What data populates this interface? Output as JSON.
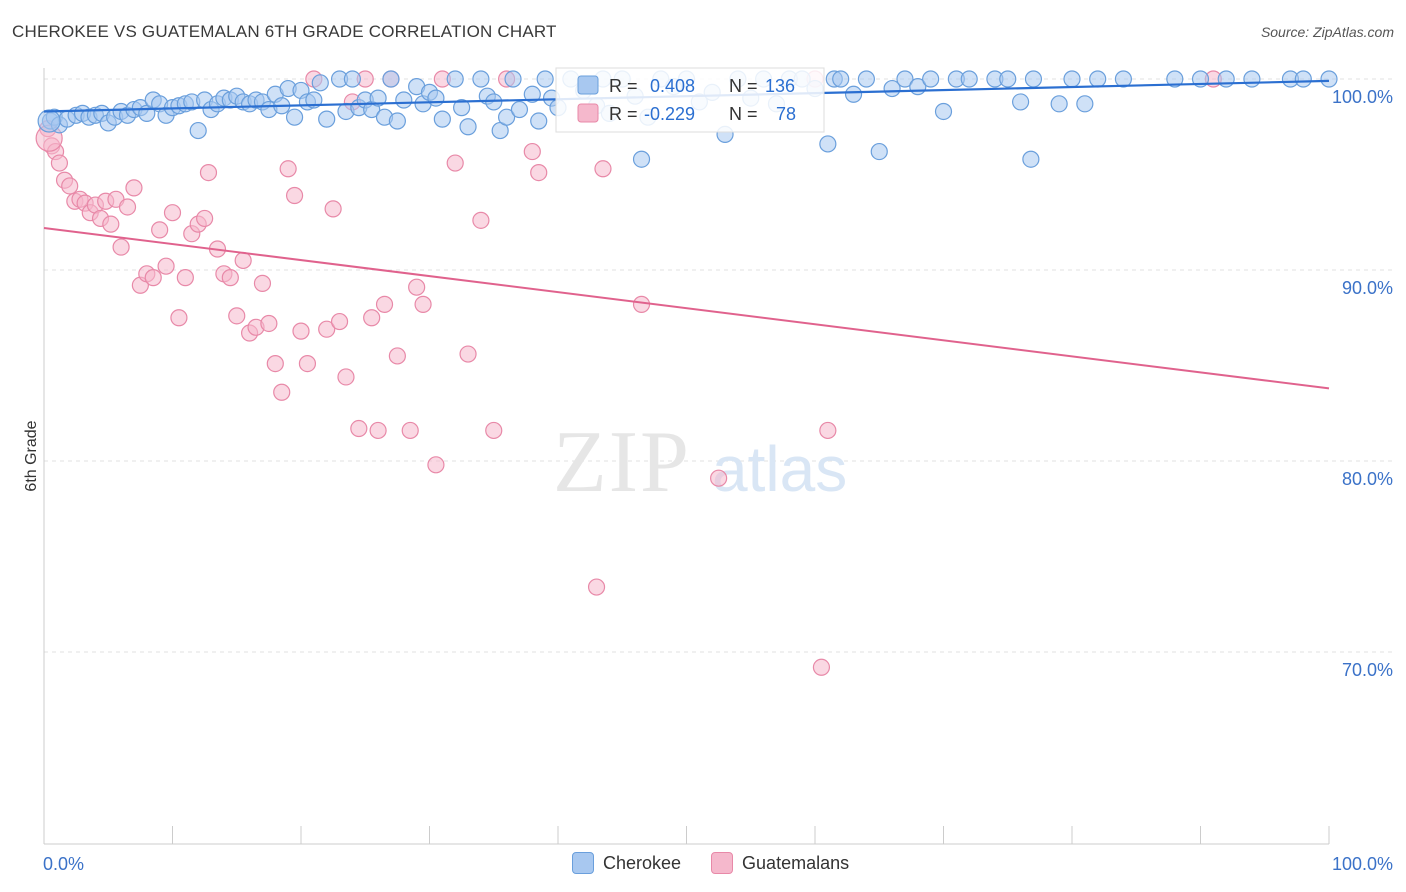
{
  "title": "CHEROKEE VS GUATEMALAN 6TH GRADE CORRELATION CHART",
  "source": "Source: ZipAtlas.com",
  "watermark": {
    "zip": "ZIP",
    "atlas": "atlas"
  },
  "colors": {
    "blue_fill": "#a8c8f0",
    "blue_stroke": "#6a9fdc",
    "blue_line": "#2b6fd1",
    "pink_fill": "#f5b8cc",
    "pink_stroke": "#e889a8",
    "pink_line": "#e0628d",
    "tick_label": "#3b72c8",
    "grid": "#e0e0e0"
  },
  "chart_data": {
    "type": "scatter",
    "xlabel": "",
    "ylabel": "6th Grade",
    "xlim": [
      0,
      100
    ],
    "ylim": [
      60,
      100
    ],
    "x_tick_labels": [
      "0.0%",
      "100.0%"
    ],
    "y_ticks": [
      100,
      90,
      80,
      70
    ],
    "y_tick_labels": [
      "100.0%",
      "90.0%",
      "80.0%",
      "70.0%"
    ],
    "grid": true,
    "legend_box": [
      {
        "r_label": "R =",
        "r_value": "0.408",
        "n_label": "N =",
        "n_value": "136"
      },
      {
        "r_label": "R =",
        "r_value": "-0.229",
        "n_label": "N =",
        "n_value": "78"
      }
    ],
    "series": [
      {
        "name": "Cherokee",
        "trend": [
          [
            0,
            98.3
          ],
          [
            100,
            99.9
          ]
        ],
        "points": [
          [
            0.5,
            97.8
          ],
          [
            0.8,
            98.0
          ],
          [
            1.2,
            97.6
          ],
          [
            1.8,
            97.9
          ],
          [
            2.5,
            98.1
          ],
          [
            3.0,
            98.2
          ],
          [
            3.5,
            98.0
          ],
          [
            4.0,
            98.1
          ],
          [
            4.5,
            98.2
          ],
          [
            5.0,
            97.7
          ],
          [
            5.5,
            98.0
          ],
          [
            6.0,
            98.3
          ],
          [
            6.5,
            98.1
          ],
          [
            7.0,
            98.4
          ],
          [
            7.5,
            98.5
          ],
          [
            8.0,
            98.2
          ],
          [
            8.5,
            98.9
          ],
          [
            9.0,
            98.7
          ],
          [
            9.5,
            98.1
          ],
          [
            10.0,
            98.5
          ],
          [
            10.5,
            98.6
          ],
          [
            11.0,
            98.7
          ],
          [
            11.5,
            98.8
          ],
          [
            12.0,
            97.3
          ],
          [
            12.5,
            98.9
          ],
          [
            13.0,
            98.4
          ],
          [
            13.5,
            98.7
          ],
          [
            14.0,
            99.0
          ],
          [
            14.5,
            98.9
          ],
          [
            15.0,
            99.1
          ],
          [
            15.5,
            98.8
          ],
          [
            16.0,
            98.7
          ],
          [
            16.5,
            98.9
          ],
          [
            17.0,
            98.8
          ],
          [
            17.5,
            98.4
          ],
          [
            18.0,
            99.2
          ],
          [
            18.5,
            98.6
          ],
          [
            19.0,
            99.5
          ],
          [
            19.5,
            98.0
          ],
          [
            20.0,
            99.4
          ],
          [
            20.5,
            98.8
          ],
          [
            21.0,
            98.9
          ],
          [
            21.5,
            99.8
          ],
          [
            22.0,
            97.9
          ],
          [
            23.0,
            100.0
          ],
          [
            23.5,
            98.3
          ],
          [
            24.0,
            100.0
          ],
          [
            24.5,
            98.5
          ],
          [
            25.0,
            98.9
          ],
          [
            25.5,
            98.4
          ],
          [
            26.0,
            99.0
          ],
          [
            26.5,
            98.0
          ],
          [
            27.0,
            100.0
          ],
          [
            27.5,
            97.8
          ],
          [
            28.0,
            98.9
          ],
          [
            29.0,
            99.6
          ],
          [
            29.5,
            98.7
          ],
          [
            30.0,
            99.3
          ],
          [
            30.5,
            99.0
          ],
          [
            31.0,
            97.9
          ],
          [
            32.0,
            100.0
          ],
          [
            32.5,
            98.5
          ],
          [
            33.0,
            97.5
          ],
          [
            34.0,
            100.0
          ],
          [
            34.5,
            99.1
          ],
          [
            35.0,
            98.8
          ],
          [
            35.5,
            97.3
          ],
          [
            36.0,
            98.0
          ],
          [
            36.5,
            100.0
          ],
          [
            37.0,
            98.4
          ],
          [
            38.0,
            99.2
          ],
          [
            38.5,
            97.8
          ],
          [
            39.0,
            100.0
          ],
          [
            39.5,
            99.0
          ],
          [
            40.0,
            98.5
          ],
          [
            41.0,
            100.0
          ],
          [
            42.0,
            99.4
          ],
          [
            43.0,
            98.6
          ],
          [
            43.5,
            100.0
          ],
          [
            44.0,
            98.2
          ],
          [
            45.0,
            100.0
          ],
          [
            46.0,
            99.1
          ],
          [
            46.5,
            95.8
          ],
          [
            47.0,
            98.0
          ],
          [
            48.0,
            100.0
          ],
          [
            49.0,
            99.6
          ],
          [
            50.0,
            100.0
          ],
          [
            51.0,
            98.8
          ],
          [
            52.0,
            99.3
          ],
          [
            53.0,
            97.1
          ],
          [
            54.0,
            100.0
          ],
          [
            55.0,
            99.0
          ],
          [
            56.0,
            100.0
          ],
          [
            57.0,
            98.7
          ],
          [
            58.0,
            100.0
          ],
          [
            59.0,
            100.0
          ],
          [
            60.0,
            99.5
          ],
          [
            61.0,
            96.6
          ],
          [
            61.5,
            100.0
          ],
          [
            62.0,
            100.0
          ],
          [
            63.0,
            99.2
          ],
          [
            64.0,
            100.0
          ],
          [
            65.0,
            96.2
          ],
          [
            66.0,
            99.5
          ],
          [
            67.0,
            100.0
          ],
          [
            68.0,
            99.6
          ],
          [
            69.0,
            100.0
          ],
          [
            70.0,
            98.3
          ],
          [
            71.0,
            100.0
          ],
          [
            72.0,
            100.0
          ],
          [
            74.0,
            100.0
          ],
          [
            75.0,
            100.0
          ],
          [
            76.0,
            98.8
          ],
          [
            77.0,
            100.0
          ],
          [
            76.8,
            95.8
          ],
          [
            79.0,
            98.7
          ],
          [
            80.0,
            100.0
          ],
          [
            81.0,
            98.7
          ],
          [
            82.0,
            100.0
          ],
          [
            84.0,
            100.0
          ],
          [
            88.0,
            100.0
          ],
          [
            90.0,
            100.0
          ],
          [
            92.0,
            100.0
          ],
          [
            94.0,
            100.0
          ],
          [
            97.0,
            100.0
          ],
          [
            98.0,
            100.0
          ],
          [
            100.0,
            100.0
          ]
        ]
      },
      {
        "name": "Guatemalans",
        "trend": [
          [
            0,
            92.2
          ],
          [
            100,
            83.8
          ]
        ],
        "points": [
          [
            0.3,
            97.4
          ],
          [
            0.6,
            96.5
          ],
          [
            0.9,
            96.2
          ],
          [
            1.2,
            95.6
          ],
          [
            1.6,
            94.7
          ],
          [
            2.0,
            94.4
          ],
          [
            2.4,
            93.6
          ],
          [
            2.8,
            93.7
          ],
          [
            3.2,
            93.5
          ],
          [
            3.6,
            93.0
          ],
          [
            4.0,
            93.4
          ],
          [
            4.4,
            92.7
          ],
          [
            4.8,
            93.6
          ],
          [
            5.2,
            92.4
          ],
          [
            5.6,
            93.7
          ],
          [
            6.0,
            91.2
          ],
          [
            6.5,
            93.3
          ],
          [
            7.0,
            94.3
          ],
          [
            7.5,
            89.2
          ],
          [
            8.0,
            89.8
          ],
          [
            8.5,
            89.6
          ],
          [
            9.0,
            92.1
          ],
          [
            9.5,
            90.2
          ],
          [
            10.0,
            93.0
          ],
          [
            10.5,
            87.5
          ],
          [
            11.0,
            89.6
          ],
          [
            11.5,
            91.9
          ],
          [
            12.0,
            92.4
          ],
          [
            12.5,
            92.7
          ],
          [
            12.8,
            95.1
          ],
          [
            13.5,
            91.1
          ],
          [
            14.0,
            89.8
          ],
          [
            14.5,
            89.6
          ],
          [
            15.0,
            87.6
          ],
          [
            15.5,
            90.5
          ],
          [
            16.0,
            86.7
          ],
          [
            16.5,
            87.0
          ],
          [
            17.0,
            89.3
          ],
          [
            17.5,
            87.2
          ],
          [
            18.0,
            85.1
          ],
          [
            18.5,
            83.6
          ],
          [
            19.0,
            95.3
          ],
          [
            19.5,
            93.9
          ],
          [
            20.0,
            86.8
          ],
          [
            20.5,
            85.1
          ],
          [
            21.0,
            100.0
          ],
          [
            22.0,
            86.9
          ],
          [
            22.5,
            93.2
          ],
          [
            23.0,
            87.3
          ],
          [
            23.5,
            84.4
          ],
          [
            24.0,
            98.8
          ],
          [
            24.5,
            81.7
          ],
          [
            25.0,
            100.0
          ],
          [
            25.5,
            87.5
          ],
          [
            26.0,
            81.6
          ],
          [
            26.5,
            88.2
          ],
          [
            27.0,
            100.0
          ],
          [
            27.5,
            85.5
          ],
          [
            28.5,
            81.6
          ],
          [
            29.0,
            89.1
          ],
          [
            29.5,
            88.2
          ],
          [
            30.5,
            79.8
          ],
          [
            31.0,
            100.0
          ],
          [
            32.0,
            95.6
          ],
          [
            33.0,
            85.6
          ],
          [
            34.0,
            92.6
          ],
          [
            35.0,
            81.6
          ],
          [
            36.0,
            100.0
          ],
          [
            38.0,
            96.2
          ],
          [
            38.5,
            95.1
          ],
          [
            43.0,
            73.4
          ],
          [
            43.5,
            95.3
          ],
          [
            46.5,
            88.2
          ],
          [
            52.5,
            79.1
          ],
          [
            60.0,
            100.0
          ],
          [
            60.5,
            69.2
          ],
          [
            61.0,
            81.6
          ],
          [
            91.0,
            100.0
          ]
        ]
      }
    ]
  }
}
